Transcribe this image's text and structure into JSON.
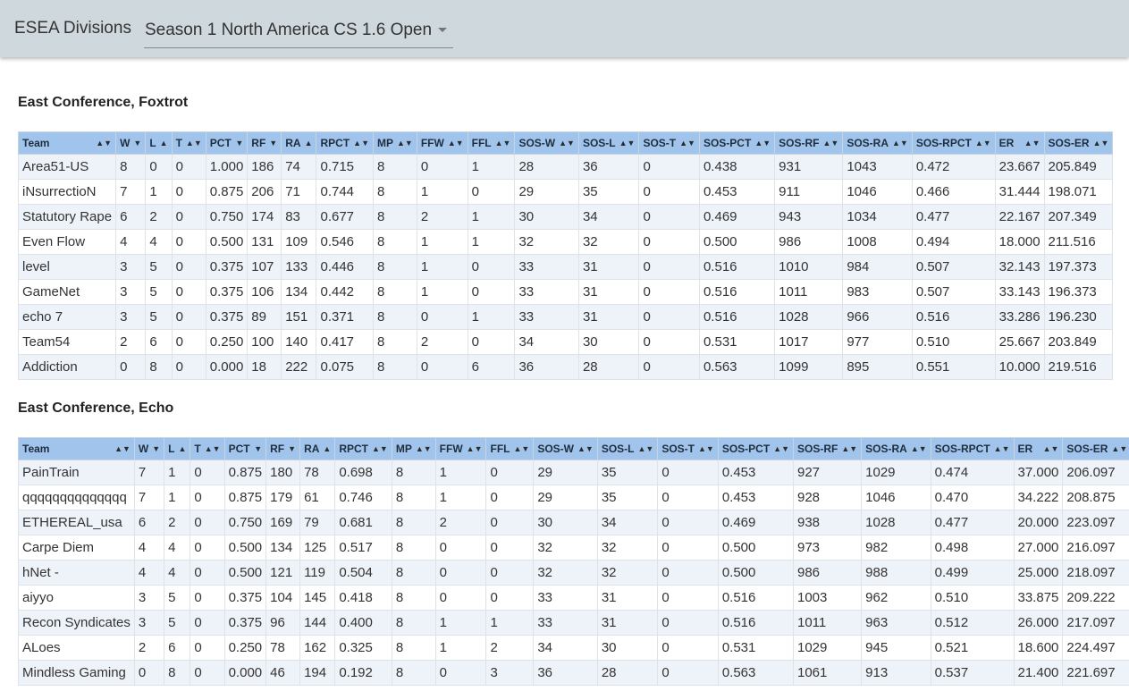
{
  "header": {
    "app_title": "ESEA Divisions",
    "division_selected": "Season 1 North America CS 1.6 Open",
    "division_caret_icon": "caret-down-icon"
  },
  "sort_icons": {
    "both": "▲▼",
    "asc": "▲",
    "desc": "▼"
  },
  "columns": [
    "Team",
    "W",
    "L",
    "T",
    "PCT",
    "RF",
    "RA",
    "RPCT",
    "MP",
    "FFW",
    "FFL",
    "SOS-W",
    "SOS-L",
    "SOS-T",
    "SOS-PCT",
    "SOS-RF",
    "SOS-RA",
    "SOS-RPCT",
    "ER",
    "SOS-ER"
  ],
  "column_sort_state": [
    "both",
    "desc",
    "asc",
    "both",
    "desc",
    "desc",
    "asc",
    "both",
    "both",
    "both",
    "both",
    "both",
    "both",
    "both",
    "both",
    "both",
    "both",
    "both",
    "both",
    "both"
  ],
  "conferences": [
    {
      "title": "East Conference, Foxtrot",
      "rows": [
        [
          "Area51-US",
          "8",
          "0",
          "0",
          "1.000",
          "186",
          "74",
          "0.715",
          "8",
          "0",
          "1",
          "28",
          "36",
          "0",
          "0.438",
          "931",
          "1043",
          "0.472",
          "23.667",
          "205.849"
        ],
        [
          "iNsurrectioN",
          "7",
          "1",
          "0",
          "0.875",
          "206",
          "71",
          "0.744",
          "8",
          "1",
          "0",
          "29",
          "35",
          "0",
          "0.453",
          "911",
          "1046",
          "0.466",
          "31.444",
          "198.071"
        ],
        [
          "Statutory Rape",
          "6",
          "2",
          "0",
          "0.750",
          "174",
          "83",
          "0.677",
          "8",
          "2",
          "1",
          "30",
          "34",
          "0",
          "0.469",
          "943",
          "1034",
          "0.477",
          "22.167",
          "207.349"
        ],
        [
          "Even Flow",
          "4",
          "4",
          "0",
          "0.500",
          "131",
          "109",
          "0.546",
          "8",
          "1",
          "1",
          "32",
          "32",
          "0",
          "0.500",
          "986",
          "1008",
          "0.494",
          "18.000",
          "211.516"
        ],
        [
          "level",
          "3",
          "5",
          "0",
          "0.375",
          "107",
          "133",
          "0.446",
          "8",
          "1",
          "0",
          "33",
          "31",
          "0",
          "0.516",
          "1010",
          "984",
          "0.507",
          "32.143",
          "197.373"
        ],
        [
          "GameNet",
          "3",
          "5",
          "0",
          "0.375",
          "106",
          "134",
          "0.442",
          "8",
          "1",
          "0",
          "33",
          "31",
          "0",
          "0.516",
          "1011",
          "983",
          "0.507",
          "33.143",
          "196.373"
        ],
        [
          "echo 7",
          "3",
          "5",
          "0",
          "0.375",
          "89",
          "151",
          "0.371",
          "8",
          "0",
          "1",
          "33",
          "31",
          "0",
          "0.516",
          "1028",
          "966",
          "0.516",
          "33.286",
          "196.230"
        ],
        [
          "Team54",
          "2",
          "6",
          "0",
          "0.250",
          "100",
          "140",
          "0.417",
          "8",
          "2",
          "0",
          "34",
          "30",
          "0",
          "0.531",
          "1017",
          "977",
          "0.510",
          "25.667",
          "203.849"
        ],
        [
          "Addiction",
          "0",
          "8",
          "0",
          "0.000",
          "18",
          "222",
          "0.075",
          "8",
          "0",
          "6",
          "36",
          "28",
          "0",
          "0.563",
          "1099",
          "895",
          "0.551",
          "10.000",
          "219.516"
        ]
      ]
    },
    {
      "title": "East Conference, Echo",
      "rows": [
        [
          "PainTrain",
          "7",
          "1",
          "0",
          "0.875",
          "180",
          "78",
          "0.698",
          "8",
          "1",
          "0",
          "29",
          "35",
          "0",
          "0.453",
          "927",
          "1029",
          "0.474",
          "37.000",
          "206.097"
        ],
        [
          "qqqqqqqqqqqqqq",
          "7",
          "1",
          "0",
          "0.875",
          "179",
          "61",
          "0.746",
          "8",
          "1",
          "0",
          "29",
          "35",
          "0",
          "0.453",
          "928",
          "1046",
          "0.470",
          "34.222",
          "208.875"
        ],
        [
          "ETHEREAL_usa",
          "6",
          "2",
          "0",
          "0.750",
          "169",
          "79",
          "0.681",
          "8",
          "2",
          "0",
          "30",
          "34",
          "0",
          "0.469",
          "938",
          "1028",
          "0.477",
          "20.000",
          "223.097"
        ],
        [
          "Carpe Diem",
          "4",
          "4",
          "0",
          "0.500",
          "134",
          "125",
          "0.517",
          "8",
          "0",
          "0",
          "32",
          "32",
          "0",
          "0.500",
          "973",
          "982",
          "0.498",
          "27.000",
          "216.097"
        ],
        [
          "hNet -",
          "4",
          "4",
          "0",
          "0.500",
          "121",
          "119",
          "0.504",
          "8",
          "0",
          "0",
          "32",
          "32",
          "0",
          "0.500",
          "986",
          "988",
          "0.499",
          "25.000",
          "218.097"
        ],
        [
          "aiyyo",
          "3",
          "5",
          "0",
          "0.375",
          "104",
          "145",
          "0.418",
          "8",
          "0",
          "0",
          "33",
          "31",
          "0",
          "0.516",
          "1003",
          "962",
          "0.510",
          "33.875",
          "209.222"
        ],
        [
          "Recon Syndicates",
          "3",
          "5",
          "0",
          "0.375",
          "96",
          "144",
          "0.400",
          "8",
          "1",
          "1",
          "33",
          "31",
          "0",
          "0.516",
          "1011",
          "963",
          "0.512",
          "26.000",
          "217.097"
        ],
        [
          "ALoes",
          "2",
          "6",
          "0",
          "0.250",
          "78",
          "162",
          "0.325",
          "8",
          "1",
          "2",
          "34",
          "30",
          "0",
          "0.531",
          "1029",
          "945",
          "0.521",
          "18.600",
          "224.497"
        ],
        [
          "Mindless Gaming",
          "0",
          "8",
          "0",
          "0.000",
          "46",
          "194",
          "0.192",
          "8",
          "0",
          "3",
          "36",
          "28",
          "0",
          "0.563",
          "1061",
          "913",
          "0.537",
          "21.400",
          "221.697"
        ]
      ]
    }
  ]
}
